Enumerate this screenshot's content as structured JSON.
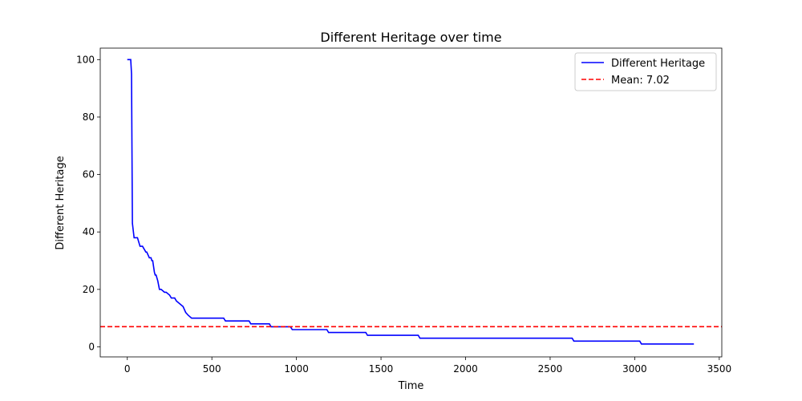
{
  "chart_data": {
    "type": "line",
    "title": "Different Heritage over time",
    "xlabel": "Time",
    "ylabel": "Different Heritage",
    "xlim": [
      -160,
      3515
    ],
    "ylim": [
      -3.5,
      104
    ],
    "xticks": [
      0,
      500,
      1000,
      1500,
      2000,
      2500,
      3000,
      3500
    ],
    "yticks": [
      0,
      20,
      40,
      60,
      80,
      100
    ],
    "grid": false,
    "legend_position": "top-right",
    "series": [
      {
        "name": "Different Heritage",
        "color": "#0000ff",
        "style": "solid",
        "x": [
          0,
          20,
          25,
          30,
          40,
          60,
          75,
          90,
          100,
          110,
          115,
          130,
          140,
          145,
          150,
          160,
          165,
          170,
          180,
          190,
          200,
          220,
          230,
          250,
          260,
          280,
          290,
          310,
          330,
          345,
          360,
          380,
          570,
          580,
          720,
          730,
          840,
          850,
          965,
          975,
          1180,
          1190,
          1410,
          1420,
          1720,
          1730,
          2630,
          2640,
          3030,
          3040,
          3350
        ],
        "y": [
          100,
          100,
          95,
          43,
          38,
          38,
          35,
          35,
          34,
          33,
          33,
          31,
          31,
          30,
          30,
          26,
          25,
          25,
          23,
          20,
          20,
          19,
          19,
          18,
          17,
          17,
          16,
          15,
          14,
          12,
          11,
          10,
          10,
          9,
          9,
          8,
          8,
          7,
          7,
          6,
          6,
          5,
          5,
          4,
          4,
          3,
          3,
          2,
          2,
          1,
          1
        ]
      }
    ],
    "reference_lines": [
      {
        "name": "Mean: 7.02",
        "value": 7.02,
        "color": "#ff0000",
        "style": "dashed"
      }
    ]
  }
}
